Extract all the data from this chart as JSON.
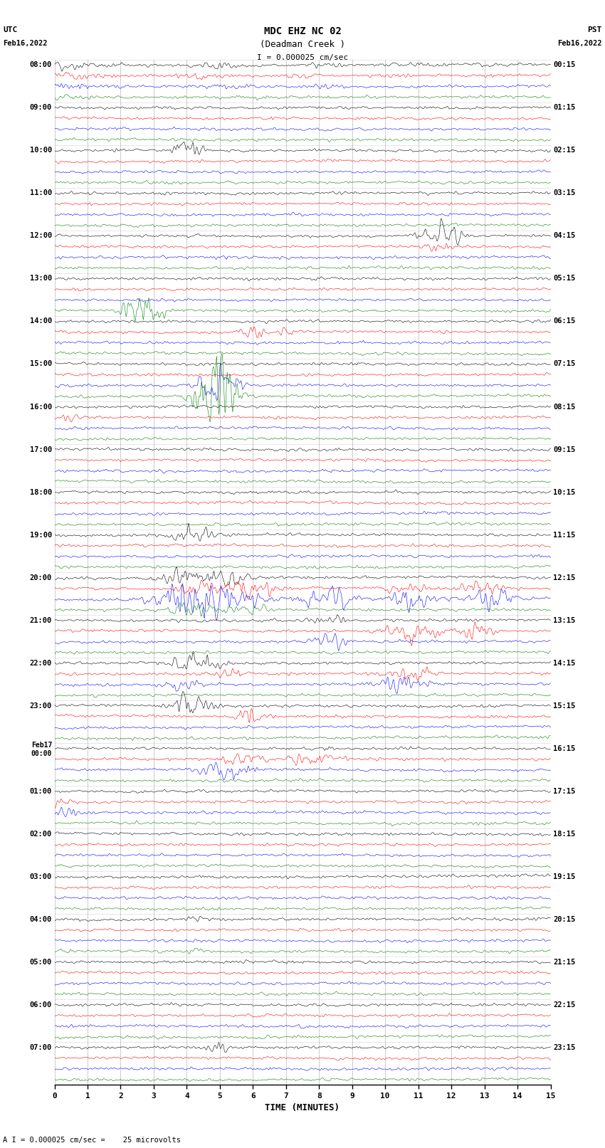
{
  "title_line1": "MDC EHZ NC 02",
  "title_line2": "(Deadman Creek )",
  "scale_text": "I = 0.000025 cm/sec",
  "footer_text": "A I = 0.000025 cm/sec =    25 microvolts",
  "xlabel": "TIME (MINUTES)",
  "bg_color": "#ffffff",
  "line_colors": [
    "black",
    "red",
    "blue",
    "green"
  ],
  "n_rows": 24,
  "left_time_labels": [
    "08:00",
    "09:00",
    "10:00",
    "11:00",
    "12:00",
    "13:00",
    "14:00",
    "15:00",
    "16:00",
    "17:00",
    "18:00",
    "19:00",
    "20:00",
    "21:00",
    "22:00",
    "23:00",
    "Feb17\n00:00",
    "01:00",
    "02:00",
    "03:00",
    "04:00",
    "05:00",
    "06:00",
    "07:00"
  ],
  "right_time_labels": [
    "00:15",
    "01:15",
    "02:15",
    "03:15",
    "04:15",
    "05:15",
    "06:15",
    "07:15",
    "08:15",
    "09:15",
    "10:15",
    "11:15",
    "12:15",
    "13:15",
    "14:15",
    "15:15",
    "16:15",
    "17:15",
    "18:15",
    "19:15",
    "20:15",
    "21:15",
    "22:15",
    "23:15"
  ],
  "noise_seed": 42,
  "base_noise_scale": 0.3,
  "trace_amplitude": 0.38,
  "grid_color": "#999999",
  "grid_alpha": 0.7
}
